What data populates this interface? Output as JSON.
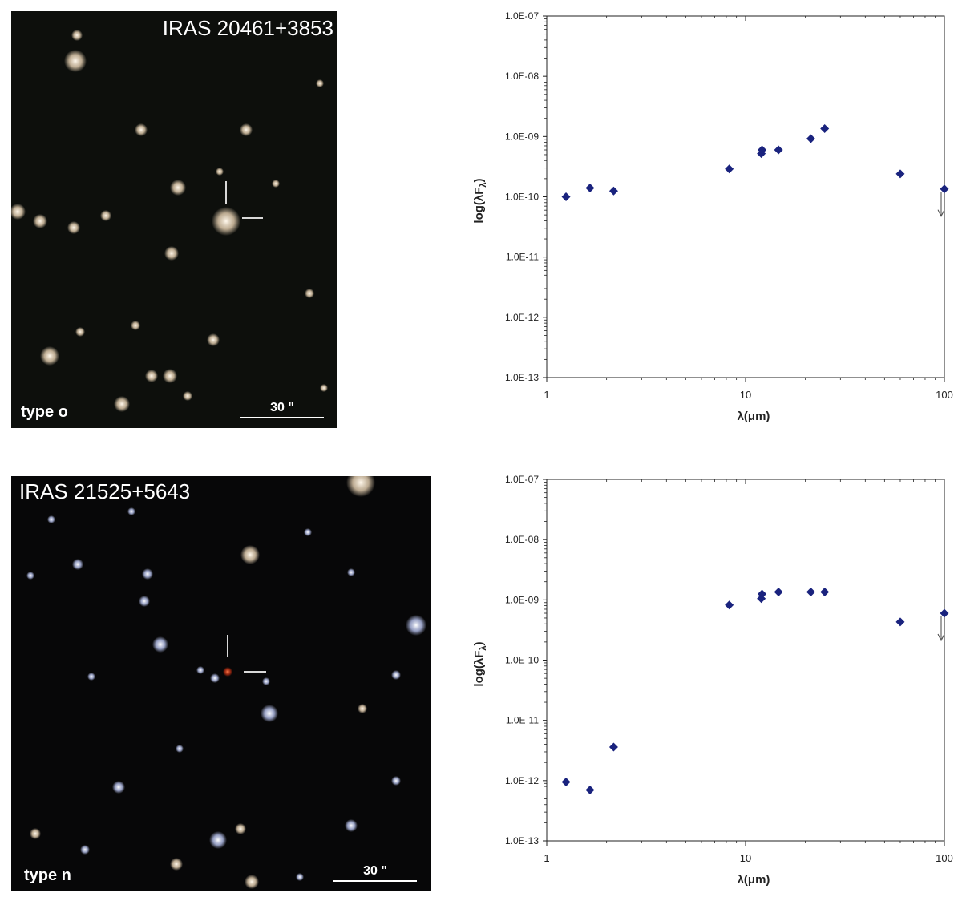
{
  "panels": [
    {
      "image": {
        "object_name": "IRAS 20461+3853",
        "type_label": "type o",
        "scale_label": "30 \""
      },
      "chart_data": {
        "type": "scatter",
        "xscale": "log",
        "yscale": "log",
        "xlim": [
          1,
          100
        ],
        "ylim": [
          1e-13,
          1e-07
        ],
        "xlabel": "λ(μm)",
        "ylabel": "log(λF",
        "ylabel_sub": "λ",
        "ylabel_close": ")",
        "xticks": [
          "1",
          "10",
          "100"
        ],
        "yticks": [
          "1.0E-13",
          "1.0E-12",
          "1.0E-11",
          "1.0E-10",
          "1.0E-09",
          "1.0E-08",
          "1.0E-07"
        ],
        "marker_color": "#1a237e",
        "points": [
          {
            "x": 1.25,
            "y": 1e-10
          },
          {
            "x": 1.65,
            "y": 1.4e-10
          },
          {
            "x": 2.17,
            "y": 1.25e-10
          },
          {
            "x": 8.28,
            "y": 2.9e-10
          },
          {
            "x": 12.0,
            "y": 5.2e-10
          },
          {
            "x": 12.1,
            "y": 6e-10
          },
          {
            "x": 14.65,
            "y": 6e-10
          },
          {
            "x": 21.3,
            "y": 9.2e-10
          },
          {
            "x": 25.0,
            "y": 1.35e-09
          },
          {
            "x": 60.0,
            "y": 2.4e-10
          },
          {
            "x": 100.0,
            "y": 1.35e-10
          }
        ],
        "upper_limits": [
          {
            "x": 100.0,
            "y": 1.35e-10
          }
        ]
      }
    },
    {
      "image": {
        "object_name": "IRAS 21525+5643",
        "type_label": "type n",
        "scale_label": "30 \""
      },
      "chart_data": {
        "type": "scatter",
        "xscale": "log",
        "yscale": "log",
        "xlim": [
          1,
          100
        ],
        "ylim": [
          1e-13,
          1e-07
        ],
        "xlabel": "λ(μm)",
        "ylabel": "log(λF",
        "ylabel_sub": "λ",
        "ylabel_close": ")",
        "xticks": [
          "1",
          "10",
          "100"
        ],
        "yticks": [
          "1.0E-13",
          "1.0E-12",
          "1.0E-11",
          "1.0E-10",
          "1.0E-09",
          "1.0E-08",
          "1.0E-07"
        ],
        "marker_color": "#1a237e",
        "points": [
          {
            "x": 1.25,
            "y": 9.5e-13
          },
          {
            "x": 1.65,
            "y": 7e-13
          },
          {
            "x": 2.17,
            "y": 3.6e-12
          },
          {
            "x": 8.28,
            "y": 8.2e-10
          },
          {
            "x": 12.0,
            "y": 1.05e-09
          },
          {
            "x": 12.1,
            "y": 1.25e-09
          },
          {
            "x": 14.65,
            "y": 1.35e-09
          },
          {
            "x": 21.3,
            "y": 1.35e-09
          },
          {
            "x": 25.0,
            "y": 1.35e-09
          },
          {
            "x": 60.0,
            "y": 4.3e-10
          },
          {
            "x": 100.0,
            "y": 6e-10
          }
        ],
        "upper_limits": [
          {
            "x": 100.0,
            "y": 6e-10
          }
        ]
      }
    }
  ]
}
